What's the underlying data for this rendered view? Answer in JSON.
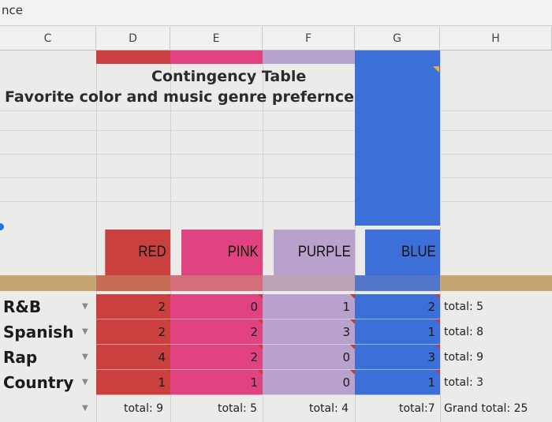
{
  "top_label": "nce",
  "columns": [
    "C",
    "D",
    "E",
    "F",
    "G",
    "H"
  ],
  "title": "Contingency Table",
  "subtitle": "Favorite color and music genre prefernce",
  "colors": {
    "red": "#c9403f",
    "pink": "#e0437f",
    "purple": "#b9a1cd",
    "blue": "#3d6fd8",
    "tan": "#c5a572"
  },
  "color_headers": [
    "RED",
    "PINK",
    "PURPLE",
    "BLUE"
  ],
  "rows": [
    {
      "label": "R&B",
      "values": [
        "2",
        "0",
        "1",
        "2"
      ],
      "total": "total: 5"
    },
    {
      "label": "Spanish",
      "values": [
        "2",
        "2",
        "3",
        "1"
      ],
      "total": "total: 8"
    },
    {
      "label": "Rap",
      "values": [
        "4",
        "2",
        "0",
        "3"
      ],
      "total": "total: 9"
    },
    {
      "label": "Country",
      "values": [
        "1",
        "1",
        "0",
        "1"
      ],
      "total": "total: 3"
    }
  ],
  "column_totals": [
    "total: 9",
    "total: 5",
    "total: 4",
    "total:7"
  ],
  "grand_total": "Grand total: 25"
}
